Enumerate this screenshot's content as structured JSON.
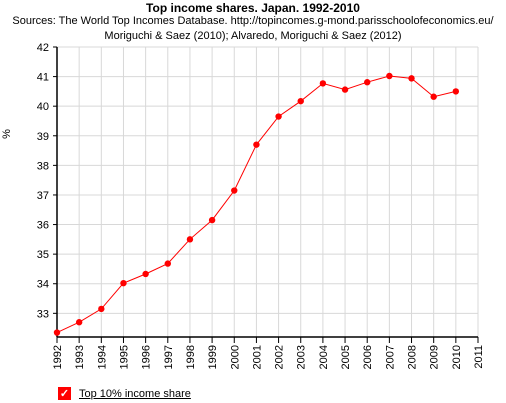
{
  "chart_data": {
    "type": "line",
    "title": "Top income shares. Japan. 1992-2010",
    "subtitle_lines": [
      "Sources: The World Top Incomes Database. http://topincomes.g-mond.parisschoolofeconomics.eu/",
      "Moriguchi & Saez (2010); Alvaredo, Moriguchi & Saez (2012)"
    ],
    "ylabel": "%",
    "xlabel": "",
    "x_ticks": [
      "1992",
      "1993",
      "1994",
      "1995",
      "1996",
      "1997",
      "1998",
      "1999",
      "2000",
      "2001",
      "2002",
      "2003",
      "2004",
      "2005",
      "2006",
      "2007",
      "2008",
      "2009",
      "2010",
      "2011"
    ],
    "y_ticks": [
      "33",
      "34",
      "35",
      "36",
      "37",
      "38",
      "39",
      "40",
      "41",
      "42"
    ],
    "xlim": [
      1992,
      2011
    ],
    "ylim": [
      32.2,
      42
    ],
    "grid": true,
    "legend_position": "bottom-left",
    "series": [
      {
        "name": "Top 10% income share",
        "color": "#ff0000",
        "x": [
          1992,
          1993,
          1994,
          1995,
          1996,
          1997,
          1998,
          1999,
          2000,
          2001,
          2002,
          2003,
          2004,
          2005,
          2006,
          2007,
          2008,
          2009,
          2010
        ],
        "values": [
          32.35,
          32.7,
          33.15,
          34.02,
          34.33,
          34.68,
          35.5,
          36.15,
          37.15,
          38.7,
          39.65,
          40.17,
          40.77,
          40.56,
          40.81,
          41.02,
          40.94,
          40.32,
          40.5
        ]
      }
    ]
  }
}
